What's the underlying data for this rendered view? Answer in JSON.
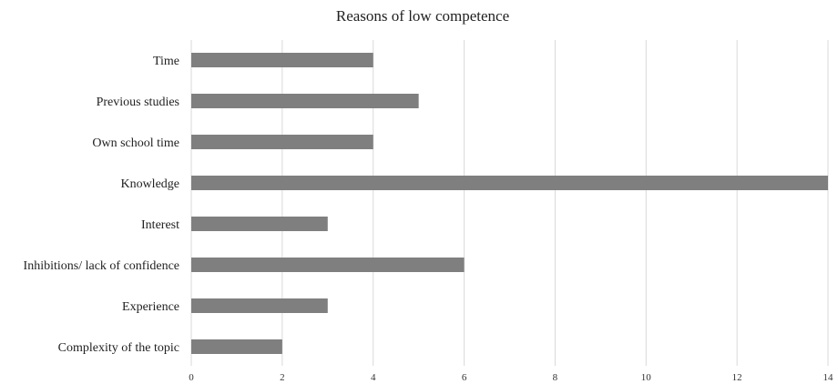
{
  "chart_data": {
    "type": "bar",
    "orientation": "horizontal",
    "title": "Reasons of low competence",
    "xlabel": "",
    "ylabel": "",
    "categories": [
      "Time",
      "Previous studies",
      "Own school time",
      "Knowledge",
      "Interest",
      "Inhibitions/ lack of confidence",
      "Experience",
      "Complexity of the topic"
    ],
    "values": [
      4,
      5,
      4,
      14,
      3,
      6,
      3,
      2
    ],
    "xlim": [
      0,
      14
    ],
    "x_ticks": [
      0,
      2,
      4,
      6,
      8,
      10,
      12,
      14
    ],
    "grid": true,
    "legend": "none",
    "colors": {
      "bar": "#7f7f7f",
      "grid": "#d9d9d9",
      "text": "#222222"
    }
  }
}
